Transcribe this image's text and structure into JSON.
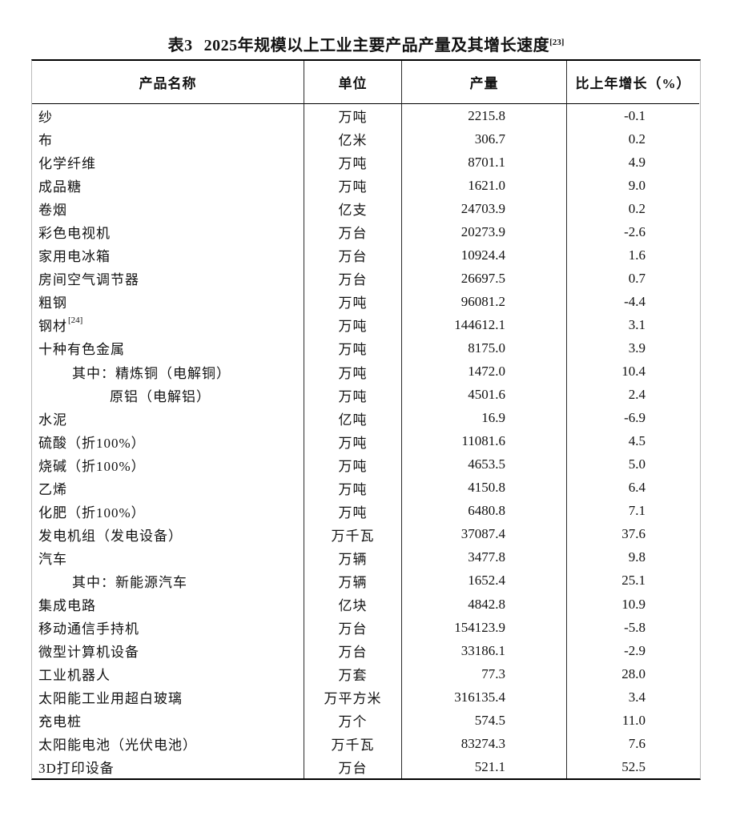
{
  "page": {
    "title": {
      "prefix": "表3",
      "main": "2025年规模以上工业主要产品产量及其增长速度",
      "superscript": "[23]"
    }
  },
  "table": {
    "headers": {
      "product": "产品名称",
      "unit": "单位",
      "output": "产量",
      "growth": "比上年增长（%）"
    },
    "rows": [
      {
        "name": "纱",
        "unit": "万吨",
        "output": "2215.8",
        "growth": "-0.1",
        "indent": 0
      },
      {
        "name": "布",
        "unit": "亿米",
        "output": "306.7",
        "growth": "0.2",
        "indent": 0
      },
      {
        "name": "化学纤维",
        "unit": "万吨",
        "output": "8701.1",
        "growth": "4.9",
        "indent": 0
      },
      {
        "name": "成品糖",
        "unit": "万吨",
        "output": "1621.0",
        "growth": "9.0",
        "indent": 0
      },
      {
        "name": "卷烟",
        "unit": "亿支",
        "output": "24703.9",
        "growth": "0.2",
        "indent": 0
      },
      {
        "name": "彩色电视机",
        "unit": "万台",
        "output": "20273.9",
        "growth": "-2.6",
        "indent": 0
      },
      {
        "name": "家用电冰箱",
        "unit": "万台",
        "output": "10924.4",
        "growth": "1.6",
        "indent": 0
      },
      {
        "name": "房间空气调节器",
        "unit": "万台",
        "output": "26697.5",
        "growth": "0.7",
        "indent": 0
      },
      {
        "name": "粗钢",
        "unit": "万吨",
        "output": "96081.2",
        "growth": "-4.4",
        "indent": 0
      },
      {
        "name": "钢材",
        "name_sup": "[24]",
        "unit": "万吨",
        "output": "144612.1",
        "growth": "3.1",
        "indent": 0
      },
      {
        "name": "十种有色金属",
        "unit": "万吨",
        "output": "8175.0",
        "growth": "3.9",
        "indent": 0
      },
      {
        "name": "其中：精炼铜（电解铜）",
        "unit": "万吨",
        "output": "1472.0",
        "growth": "10.4",
        "indent": 1
      },
      {
        "name": "原铝（电解铝）",
        "unit": "万吨",
        "output": "4501.6",
        "growth": "2.4",
        "indent": 2
      },
      {
        "name": "水泥",
        "unit": "亿吨",
        "output": "16.9",
        "growth": "-6.9",
        "indent": 0
      },
      {
        "name": "硫酸（折100%）",
        "unit": "万吨",
        "output": "11081.6",
        "growth": "4.5",
        "indent": 0
      },
      {
        "name": "烧碱（折100%）",
        "unit": "万吨",
        "output": "4653.5",
        "growth": "5.0",
        "indent": 0
      },
      {
        "name": "乙烯",
        "unit": "万吨",
        "output": "4150.8",
        "growth": "6.4",
        "indent": 0
      },
      {
        "name": "化肥（折100%）",
        "unit": "万吨",
        "output": "6480.8",
        "growth": "7.1",
        "indent": 0
      },
      {
        "name": "发电机组（发电设备）",
        "unit": "万千瓦",
        "output": "37087.4",
        "growth": "37.6",
        "indent": 0
      },
      {
        "name": "汽车",
        "unit": "万辆",
        "output": "3477.8",
        "growth": "9.8",
        "indent": 0
      },
      {
        "name": "其中：新能源汽车",
        "unit": "万辆",
        "output": "1652.4",
        "growth": "25.1",
        "indent": 1
      },
      {
        "name": "集成电路",
        "unit": "亿块",
        "output": "4842.8",
        "growth": "10.9",
        "indent": 0
      },
      {
        "name": "移动通信手持机",
        "unit": "万台",
        "output": "154123.9",
        "growth": "-5.8",
        "indent": 0
      },
      {
        "name": "微型计算机设备",
        "unit": "万台",
        "output": "33186.1",
        "growth": "-2.9",
        "indent": 0
      },
      {
        "name": "工业机器人",
        "unit": "万套",
        "output": "77.3",
        "growth": "28.0",
        "indent": 0
      },
      {
        "name": "太阳能工业用超白玻璃",
        "unit": "万平方米",
        "output": "316135.4",
        "growth": "3.4",
        "indent": 0
      },
      {
        "name": "充电桩",
        "unit": "万个",
        "output": "574.5",
        "growth": "11.0",
        "indent": 0
      },
      {
        "name": "太阳能电池（光伏电池）",
        "unit": "万千瓦",
        "output": "83274.3",
        "growth": "7.6",
        "indent": 0
      },
      {
        "name": "3D打印设备",
        "unit": "万台",
        "output": "521.1",
        "growth": "52.5",
        "indent": 0
      }
    ]
  }
}
